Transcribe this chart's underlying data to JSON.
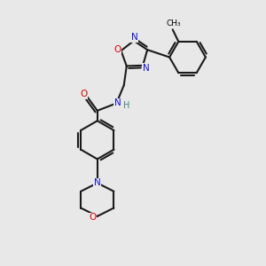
{
  "bg_color": "#e8e8e8",
  "bond_color": "#1a1a1a",
  "atom_colors": {
    "O": "#e00000",
    "N": "#1010e0",
    "H": "#408080"
  },
  "line_width": 1.5,
  "font_size": 7.5
}
